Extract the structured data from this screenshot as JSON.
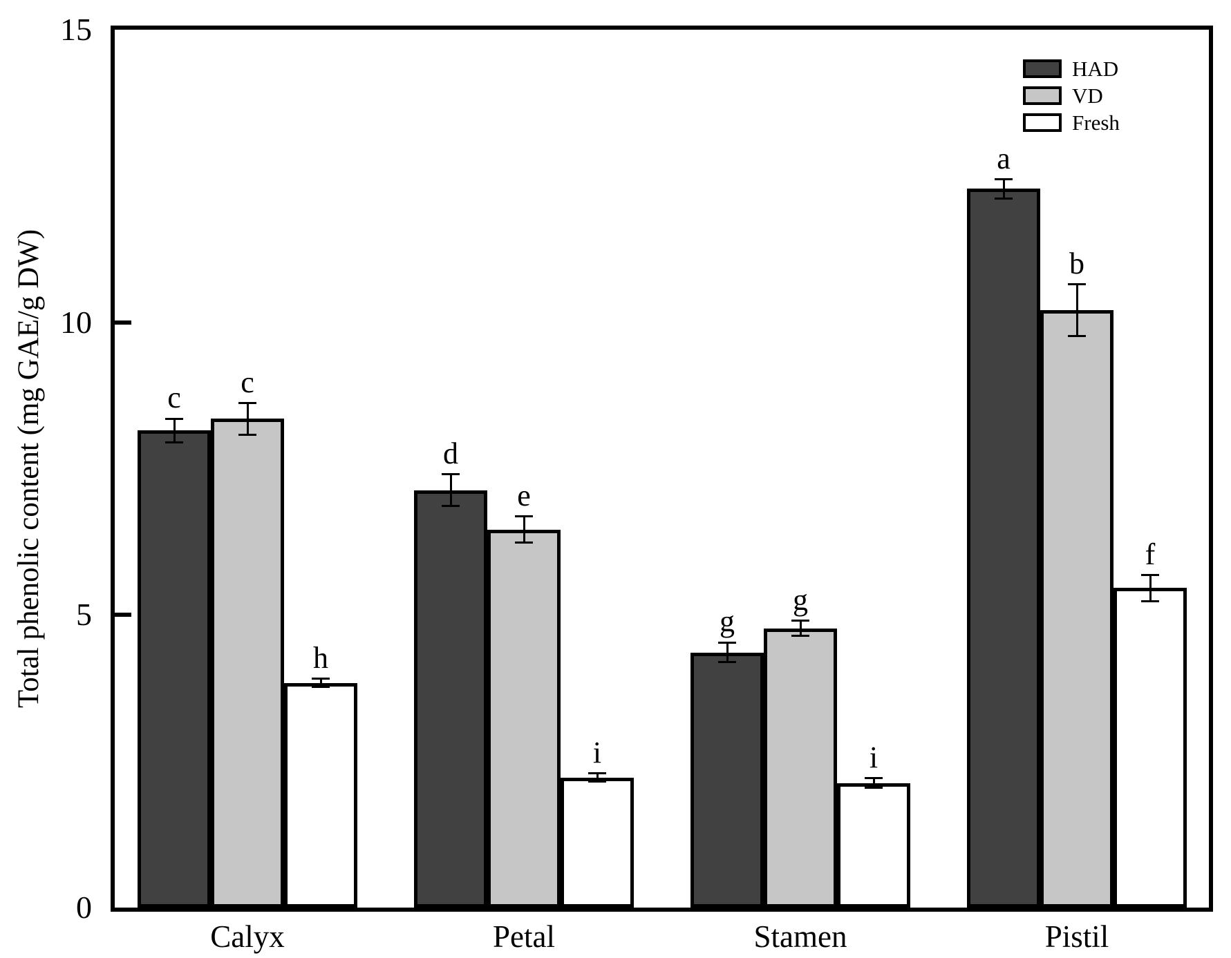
{
  "chart_data": {
    "type": "bar",
    "title": "",
    "xlabel": "",
    "ylabel": "Total phenolic content (mg GAE/g DW)",
    "ylim": [
      0,
      15
    ],
    "yticks": [
      "0",
      "5",
      "10",
      "15"
    ],
    "ytick_values": [
      0,
      5,
      10,
      15
    ],
    "grid": false,
    "legend_position": "top-right",
    "categories": [
      "Calyx",
      "Petal",
      "Stamen",
      "Pistil"
    ],
    "series": [
      {
        "name": "HAD",
        "color": "#414141",
        "values": [
          8.15,
          7.13,
          4.36,
          12.28
        ],
        "errors": [
          0.2,
          0.27,
          0.17,
          0.16
        ],
        "letters": [
          "c",
          "d",
          "g",
          "a"
        ]
      },
      {
        "name": "VD",
        "color": "#c6c6c6",
        "values": [
          8.35,
          6.46,
          4.77,
          10.21
        ],
        "errors": [
          0.27,
          0.22,
          0.13,
          0.44
        ],
        "letters": [
          "c",
          "e",
          "g",
          "b"
        ]
      },
      {
        "name": "Fresh",
        "color": "#ffffff",
        "values": [
          3.84,
          2.22,
          2.13,
          5.46
        ],
        "errors": [
          0.07,
          0.07,
          0.08,
          0.22
        ],
        "letters": [
          "h",
          "i",
          "i",
          "f"
        ]
      }
    ]
  }
}
